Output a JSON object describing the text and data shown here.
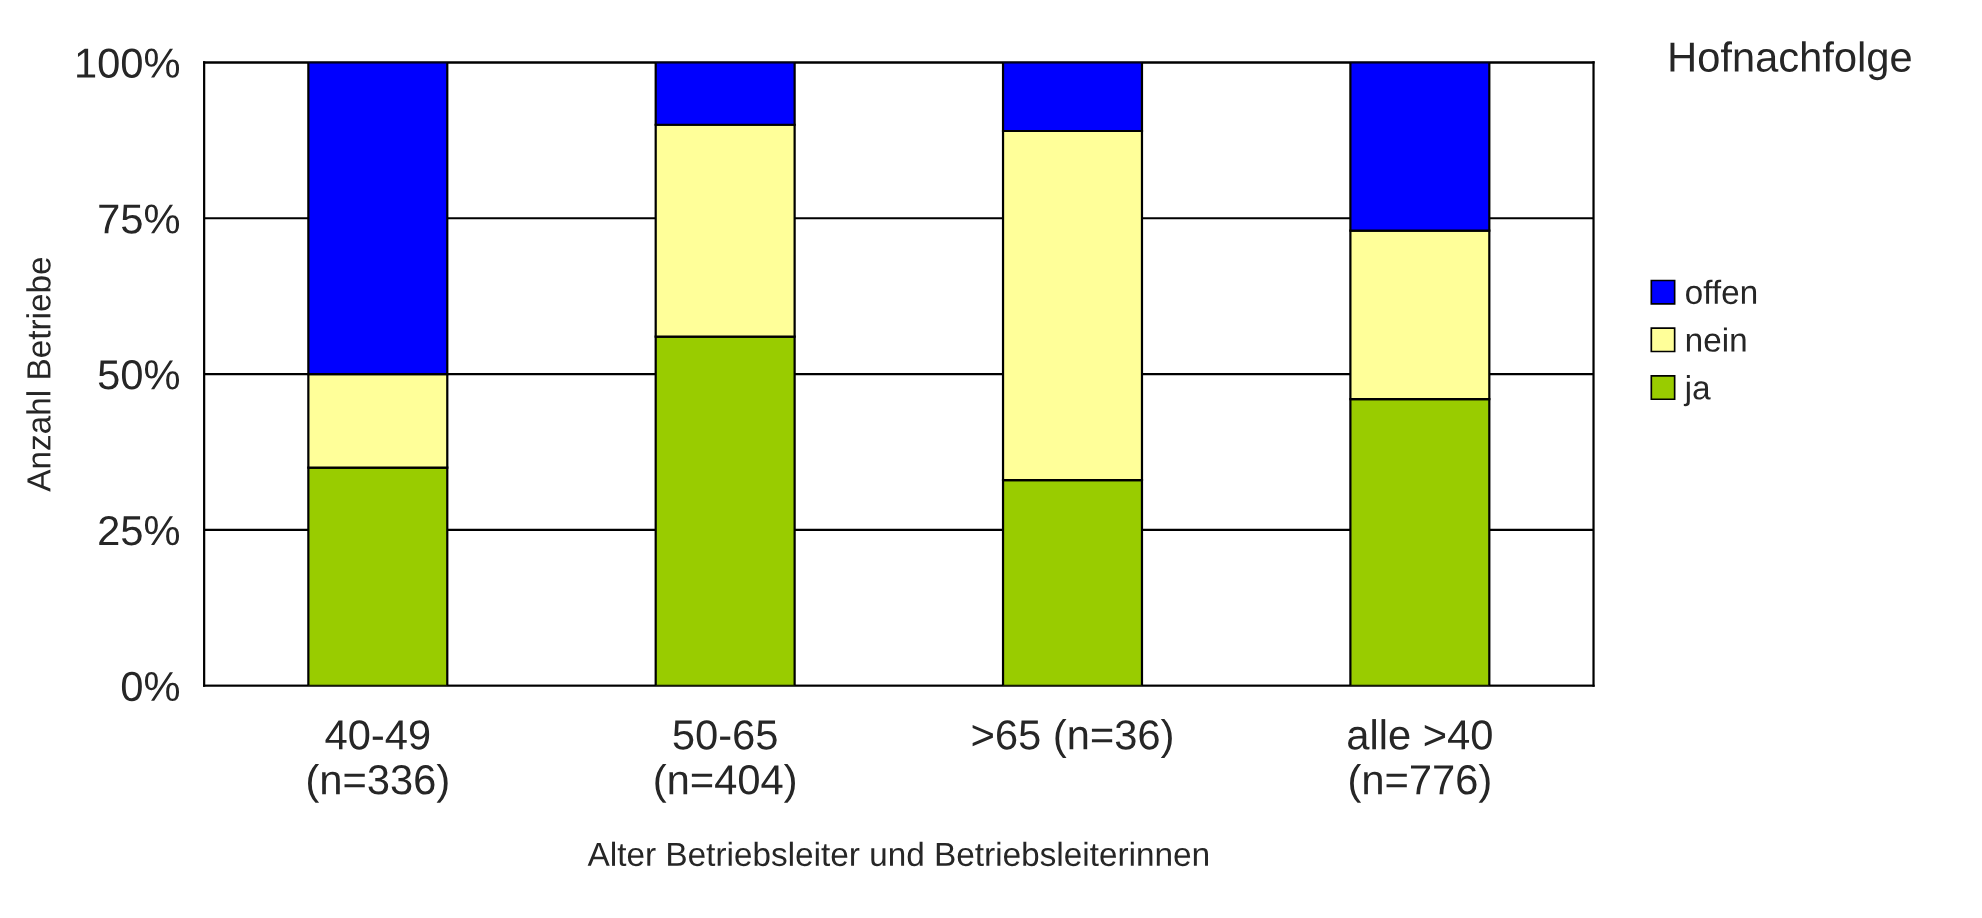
{
  "chart_data": {
    "type": "bar",
    "stacked": true,
    "categories": [
      "40-49\n(n=336)",
      "50-65\n(n=404)",
      ">65 (n=36)",
      "alle >40\n(n=776)"
    ],
    "series": [
      {
        "name": "ja",
        "color": "#99cc00",
        "values": [
          35,
          56,
          33,
          46
        ]
      },
      {
        "name": "nein",
        "color": "#ffff99",
        "values": [
          15,
          34,
          56,
          27
        ]
      },
      {
        "name": "offen",
        "color": "#0000ff",
        "values": [
          50,
          10,
          11,
          27
        ]
      }
    ],
    "xlabel": "Alter Betriebsleiter und Betriebsleiterinnen",
    "ylabel": "Anzahl Betriebe",
    "legend_title": "Hofnachfolge",
    "ylim": [
      0,
      100
    ],
    "yticks": [
      {
        "value": 0,
        "label": "0%"
      },
      {
        "value": 25,
        "label": "25%"
      },
      {
        "value": 50,
        "label": "50%"
      },
      {
        "value": 75,
        "label": "75%"
      },
      {
        "value": 100,
        "label": "100%"
      }
    ],
    "grid": "y",
    "legend": "right"
  }
}
